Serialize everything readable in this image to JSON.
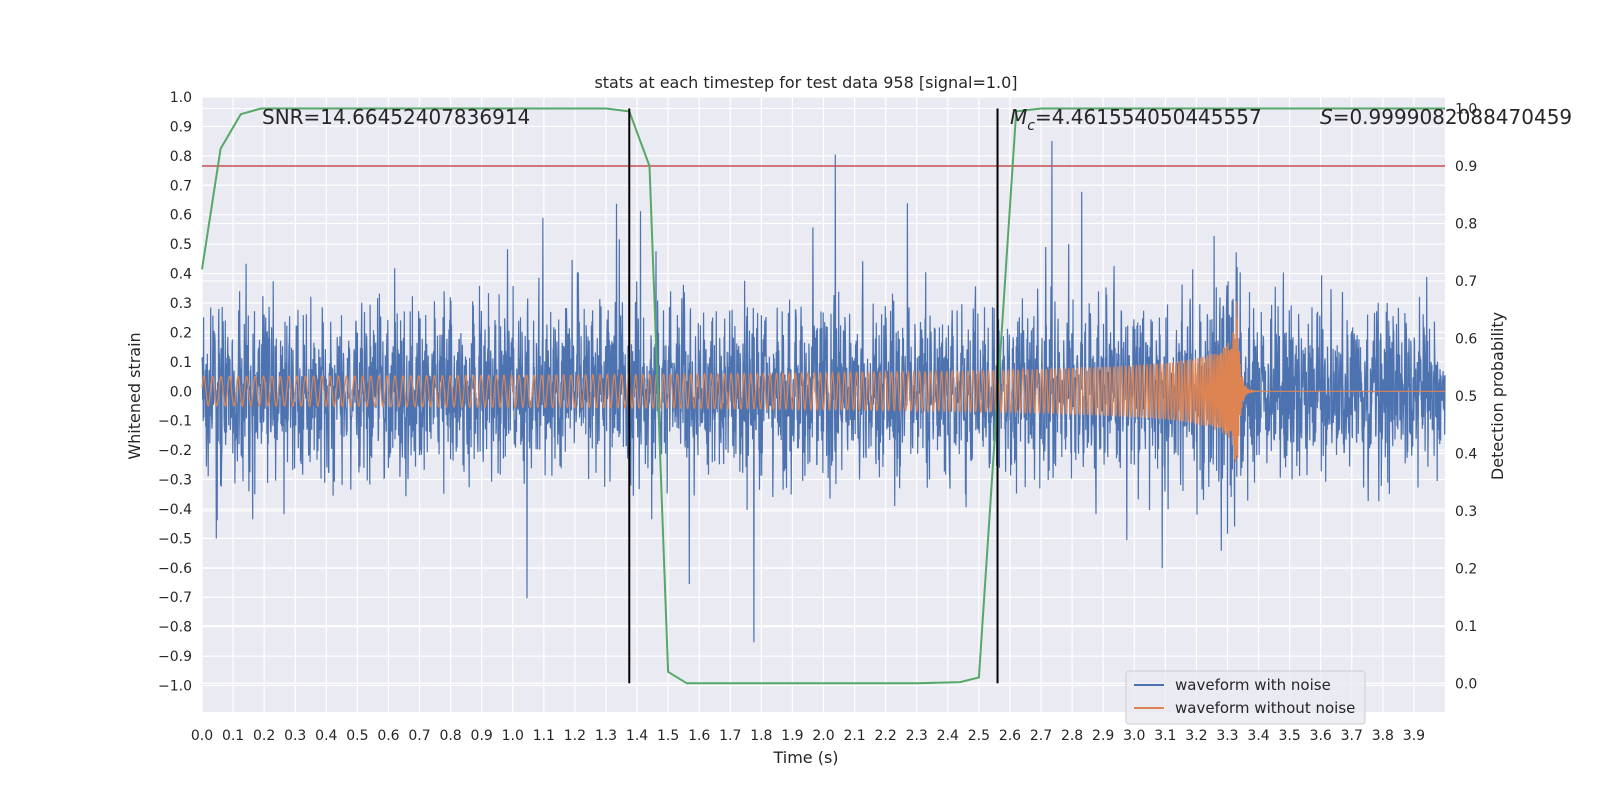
{
  "chart_data": {
    "type": "line",
    "title": "stats at each timestep for test data 958 [signal=1.0]",
    "xlabel": "Time (s)",
    "ylabel": "Whitened strain",
    "y2label": "Detection probability",
    "xlim": [
      0.0,
      4.0
    ],
    "ylim": [
      -1.09,
      1.0
    ],
    "y2lim": [
      -0.05,
      1.02
    ],
    "x_ticks": [
      0.0,
      0.1,
      0.2,
      0.3,
      0.4,
      0.5,
      0.6,
      0.7,
      0.8,
      0.9,
      1.0,
      1.1,
      1.2,
      1.3,
      1.4,
      1.5,
      1.6,
      1.7,
      1.8,
      1.9,
      2.0,
      2.1,
      2.2,
      2.3,
      2.4,
      2.5,
      2.6,
      2.7,
      2.8,
      2.9,
      3.0,
      3.1,
      3.2,
      3.3,
      3.4,
      3.5,
      3.6,
      3.7,
      3.8,
      3.9
    ],
    "x_tick_labels": [
      "0.0",
      "0.1",
      "0.2",
      "0.3",
      "0.4",
      "0.5",
      "0.6",
      "0.7",
      "0.8",
      "0.9",
      "1.0",
      "1.1",
      "1.2",
      "1.3",
      "1.4",
      "1.5",
      "1.6",
      "1.7",
      "1.8",
      "1.9",
      "2.0",
      "2.1",
      "2.2",
      "2.3",
      "2.4",
      "2.5",
      "2.6",
      "2.7",
      "2.8",
      "2.9",
      "3.0",
      "3.1",
      "3.2",
      "3.3",
      "3.4",
      "3.5",
      "3.6",
      "3.7",
      "3.8",
      "3.9"
    ],
    "y_ticks": [
      1.0,
      0.9,
      0.8,
      0.7,
      0.6,
      0.5,
      0.4,
      0.3,
      0.2,
      0.1,
      0.0,
      -0.1,
      -0.2,
      -0.3,
      -0.4,
      -0.5,
      -0.6,
      -0.7,
      -0.8,
      -0.9,
      -1.0
    ],
    "y_tick_labels": [
      "1.0",
      "0.9",
      "0.8",
      "0.7",
      "0.6",
      "0.5",
      "0.4",
      "0.3",
      "0.2",
      "0.1",
      "0.0",
      "−0.1",
      "−0.2",
      "−0.3",
      "−0.4",
      "−0.5",
      "−0.6",
      "−0.7",
      "−0.8",
      "−0.9",
      "−1.0"
    ],
    "y2_ticks": [
      1.0,
      0.9,
      0.8,
      0.7,
      0.6,
      0.5,
      0.4,
      0.3,
      0.2,
      0.1,
      0.0
    ],
    "y2_tick_labels": [
      "1.0",
      "0.9",
      "0.8",
      "0.7",
      "0.6",
      "0.5",
      "0.4",
      "0.3",
      "0.2",
      "0.1",
      "0.0"
    ],
    "annotations": {
      "snr": "SNR=14.66452407836914",
      "mc_symbol": "M",
      "mc_sub": "c",
      "mc_value": "=4.461554050445557",
      "s_symbol": "S",
      "s_value": "=0.9999082088470459"
    },
    "threshold": 0.9,
    "vlines": [
      1.375,
      2.56
    ],
    "series": [
      {
        "name": "waveform with noise",
        "color": "#4c72b0",
        "noise_amplitude": 0.93,
        "x_range": [
          0.0,
          4.0
        ]
      },
      {
        "name": "waveform without noise",
        "color": "#dd8452",
        "chirp": {
          "start_amplitude": 0.05,
          "peak_amplitude": 0.31,
          "merger_time": 3.33,
          "start_frequency_hz": 36,
          "merger_frequency_hz": 300
        }
      },
      {
        "name": "Detection probability",
        "color": "#55a868",
        "axis": "right",
        "x": [
          0.0,
          0.06,
          0.125,
          0.19,
          0.5,
          1.0,
          1.3,
          1.375,
          1.44,
          1.5,
          1.56,
          1.7,
          2.0,
          2.3,
          2.44,
          2.5,
          2.56,
          2.62,
          2.7,
          3.0,
          4.0
        ],
        "y": [
          0.72,
          0.93,
          0.99,
          1.0,
          1.0,
          1.0,
          1.0,
          0.995,
          0.9,
          0.02,
          0.0,
          0.0,
          0.0,
          0.0,
          0.002,
          0.01,
          0.5,
          0.995,
          1.0,
          1.0,
          1.0
        ]
      }
    ],
    "threshold_color": "#c44e52",
    "grid": true,
    "legend_position": "lower-right"
  }
}
